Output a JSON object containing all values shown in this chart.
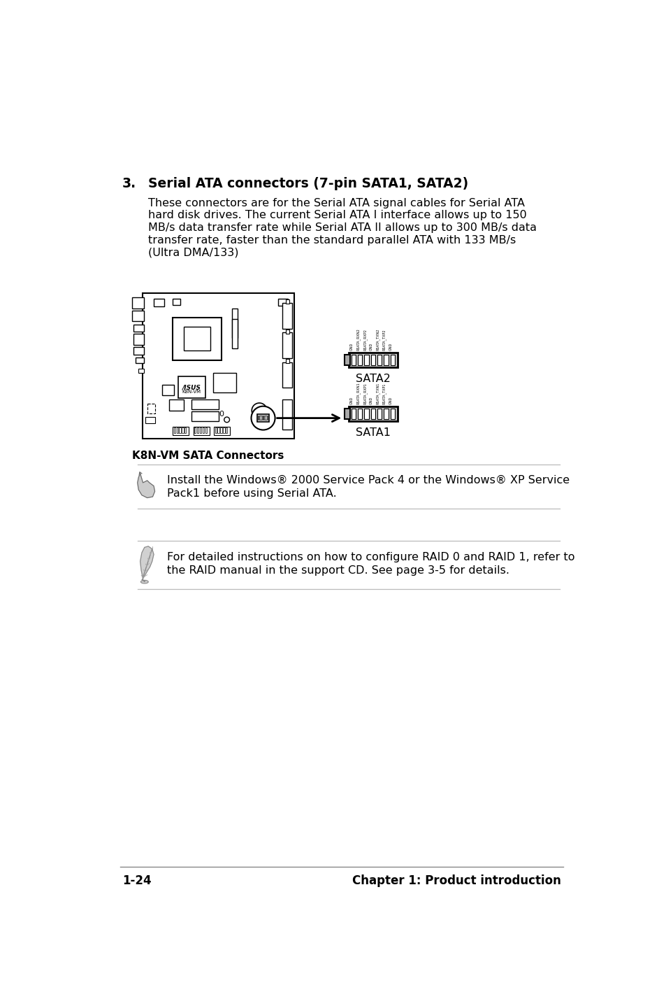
{
  "bg_color": "#ffffff",
  "page_number": "1-24",
  "chapter_title": "Chapter 1: Product introduction",
  "section_number": "3.",
  "section_title": "Serial ATA connectors (7-pin SATA1, SATA2)",
  "body_text_lines": [
    "These connectors are for the Serial ATA signal cables for Serial ATA",
    "hard disk drives. The current Serial ATA I interface allows up to 150",
    "MB/s data transfer rate while Serial ATA II allows up to 300 MB/s data",
    "transfer rate, faster than the standard parallel ATA with 133 MB/s",
    "(Ultra DMA/133)"
  ],
  "note1_text": "Install the Windows® 2000 Service Pack 4 or the Windows® XP Service\nPack1 before using Serial ATA.",
  "note2_text": "For detailed instructions on how to configure RAID 0 and RAID 1, refer to\nthe RAID manual in the support CD. See page 3-5 for details.",
  "diagram_caption": "K8N-VM SATA Connectors",
  "sata1_label": "SATA1",
  "sata2_label": "SATA2",
  "sata2_pins": [
    "GND",
    "RSATA_RXN2",
    "RSATA_RXP2",
    "GND",
    "RSATA_TXN2",
    "RSATA_TXP2",
    "GND"
  ],
  "sata1_pins": [
    "GND",
    "RSATA_RXN1",
    "RSATA_RXP1",
    "GND",
    "RSATA_TXN1",
    "RSATA_TXP1",
    "GND"
  ],
  "text_color": "#000000",
  "line_color": "#aaaaaa"
}
